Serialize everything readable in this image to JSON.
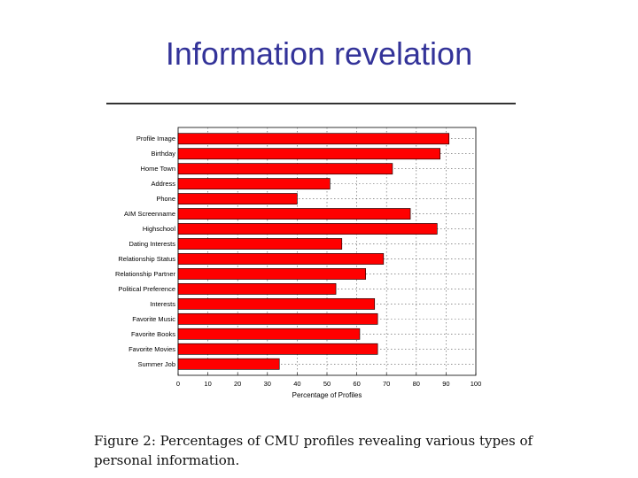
{
  "slide": {
    "title": "Information revelation",
    "caption": "Figure 2: Percentages of CMU profiles revealing various types of personal information."
  },
  "chart_data": {
    "type": "bar",
    "orientation": "horizontal",
    "categories": [
      "Profile Image",
      "Birthday",
      "Home Town",
      "Address",
      "Phone",
      "AIM Screenname",
      "Highschool",
      "Dating Interests",
      "Relationship Status",
      "Relationship Partner",
      "Political Preference",
      "Interests",
      "Favorite Music",
      "Favorite Books",
      "Favorite Movies",
      "Summer Job"
    ],
    "values": [
      91,
      88,
      72,
      51,
      40,
      78,
      87,
      55,
      69,
      63,
      53,
      66,
      67,
      61,
      67,
      34
    ],
    "xlabel": "Percentage of Profiles",
    "ylabel": "",
    "xlim": [
      0,
      100
    ],
    "xticks": [
      0,
      10,
      20,
      30,
      40,
      50,
      60,
      70,
      80,
      90,
      100
    ],
    "grid": true,
    "bar_color": "#ff0000"
  }
}
